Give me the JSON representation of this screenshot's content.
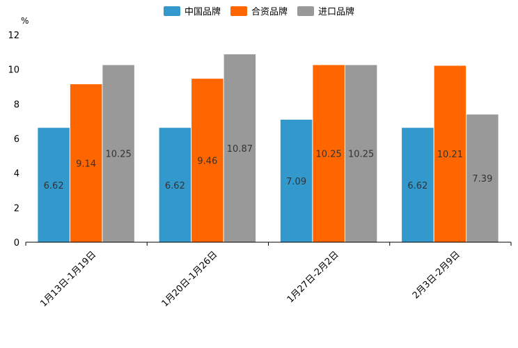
{
  "chart_data": {
    "type": "bar",
    "title": "",
    "xlabel": "",
    "ylabel": "%",
    "ylim": [
      0,
      12
    ],
    "yticks": [
      0,
      2,
      4,
      6,
      8,
      10,
      12
    ],
    "grid": false,
    "legend_position": "top-center",
    "categories": [
      "1月13日-1月19日",
      "1月20日-1月26日",
      "1月27日-2月2日",
      "2月3日-2月9日"
    ],
    "series": [
      {
        "name": "中国品牌",
        "color": "#3399cc",
        "values": [
          6.62,
          6.62,
          7.09,
          6.62
        ]
      },
      {
        "name": "合资品牌",
        "color": "#ff6600",
        "values": [
          9.14,
          9.46,
          10.25,
          10.21
        ]
      },
      {
        "name": "进口品牌",
        "color": "#999999",
        "values": [
          10.25,
          10.87,
          10.25,
          7.39
        ]
      }
    ],
    "label_color": "#333333",
    "axis_color": "#000000",
    "text_color": "#000000"
  }
}
